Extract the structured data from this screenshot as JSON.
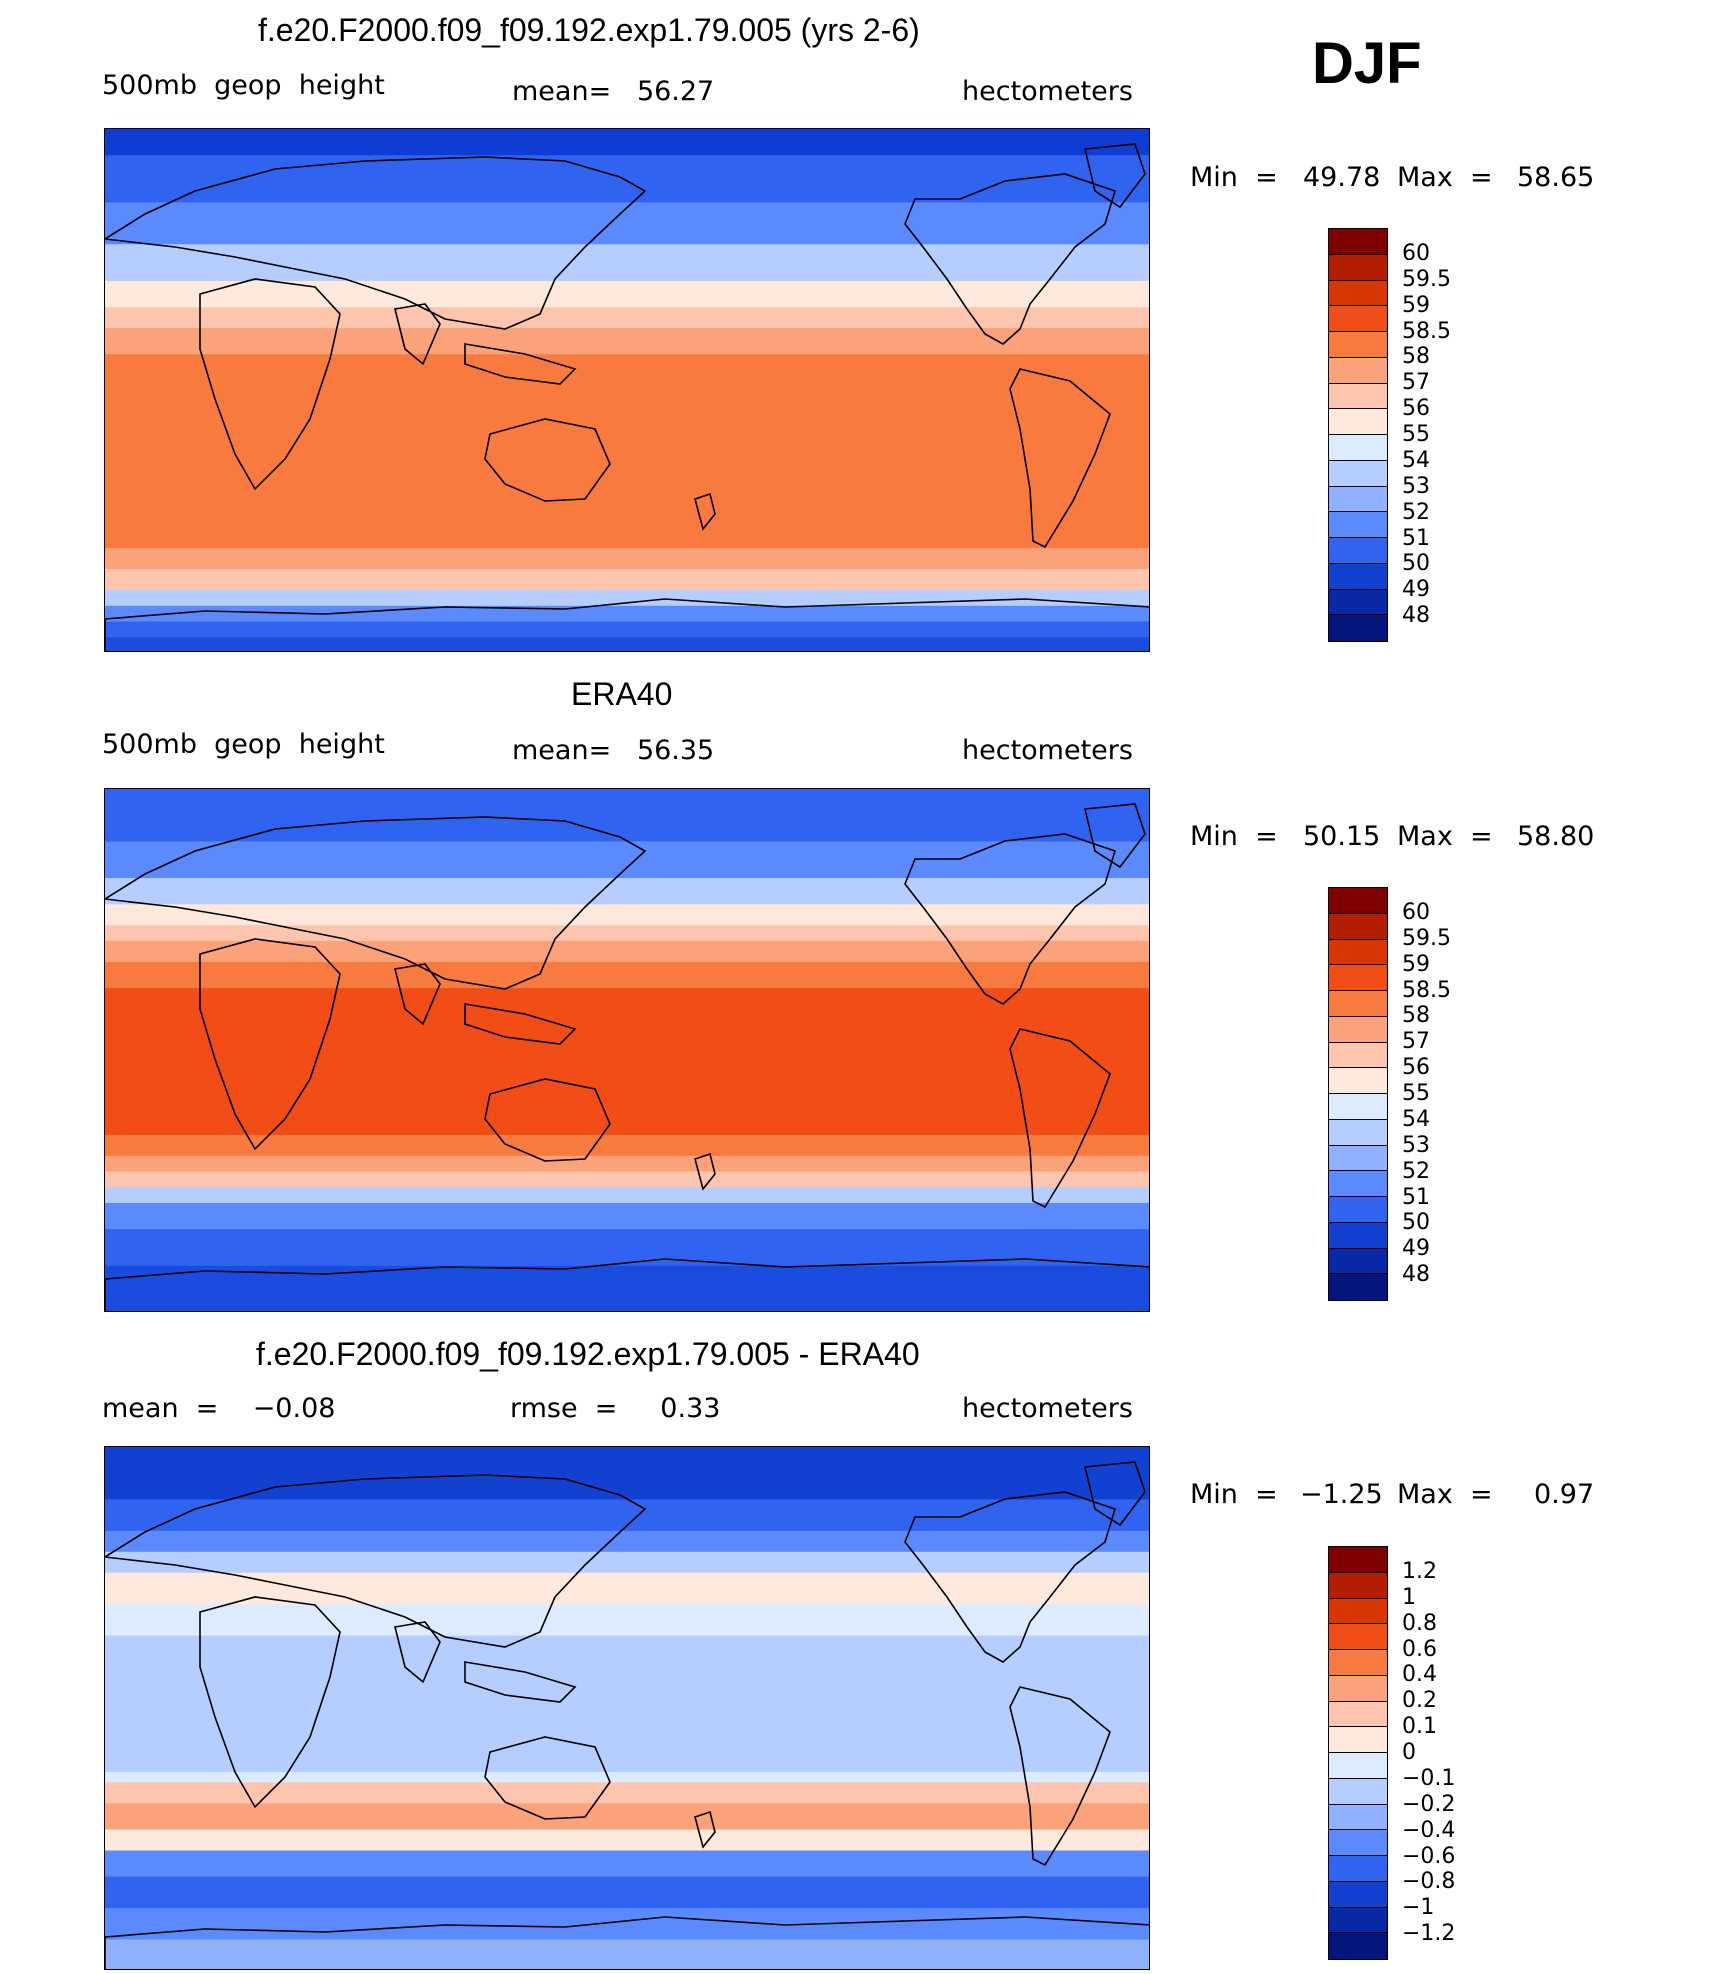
{
  "season": "DJF",
  "panels": [
    {
      "title": "f.e20.F2000.f09_f09.192.exp1.79.005 (yrs 2-6)",
      "left_label": "500mb  geop  height",
      "mid_label": "mean=   56.27",
      "right_label": "hectometers",
      "min_label": "Min  =",
      "min_value": "49.78",
      "max_label": "Max  =",
      "max_value": "58.65",
      "colorbar": {
        "labels": [
          "60",
          "59.5",
          "59",
          "58.5",
          "58",
          "57",
          "56",
          "55",
          "54",
          "53",
          "52",
          "51",
          "50",
          "49",
          "48"
        ],
        "colors": [
          "#7f0000",
          "#b31d00",
          "#d93500",
          "#f24d17",
          "#f97a3f",
          "#fba27b",
          "#fdc5ad",
          "#fee9dc",
          "#dcebff",
          "#b5cdff",
          "#8fb1ff",
          "#5a8afd",
          "#2f63f0",
          "#1240d1",
          "#0928a8",
          "#04157d"
        ]
      },
      "bands": [
        {
          "color": "#0f3dd4",
          "v": 5
        },
        {
          "color": "#2f63f0",
          "v": 14
        },
        {
          "color": "#5a8afd",
          "v": 22
        },
        {
          "color": "#b5cdff",
          "v": 29
        },
        {
          "color": "#fee9dc",
          "v": 34
        },
        {
          "color": "#fdc5ad",
          "v": 38
        },
        {
          "color": "#fba27b",
          "v": 43
        },
        {
          "color": "#f97a3f",
          "v": 80
        },
        {
          "color": "#fba27b",
          "v": 84
        },
        {
          "color": "#fdc5ad",
          "v": 88
        },
        {
          "color": "#b5cdff",
          "v": 91
        },
        {
          "color": "#5a8afd",
          "v": 94
        },
        {
          "color": "#2f63f0",
          "v": 97
        },
        {
          "color": "#1b4ce0",
          "v": 100
        }
      ]
    },
    {
      "title": "ERA40",
      "left_label": "500mb  geop  height",
      "mid_label": "mean=   56.35",
      "right_label": "hectometers",
      "min_label": "Min  =",
      "min_value": "50.15",
      "max_label": "Max  =",
      "max_value": "58.80",
      "colorbar": {
        "labels": [
          "60",
          "59.5",
          "59",
          "58.5",
          "58",
          "57",
          "56",
          "55",
          "54",
          "53",
          "52",
          "51",
          "50",
          "49",
          "48"
        ],
        "colors": [
          "#7f0000",
          "#b31d00",
          "#d93500",
          "#f24d17",
          "#f97a3f",
          "#fba27b",
          "#fdc5ad",
          "#fee9dc",
          "#dcebff",
          "#b5cdff",
          "#8fb1ff",
          "#5a8afd",
          "#2f63f0",
          "#1240d1",
          "#0928a8",
          "#04157d"
        ]
      },
      "bands": [
        {
          "color": "#2f63f0",
          "v": 10
        },
        {
          "color": "#5a8afd",
          "v": 17
        },
        {
          "color": "#b5cdff",
          "v": 22
        },
        {
          "color": "#fee9dc",
          "v": 26
        },
        {
          "color": "#fdc5ad",
          "v": 29
        },
        {
          "color": "#fba27b",
          "v": 33
        },
        {
          "color": "#f97a3f",
          "v": 38
        },
        {
          "color": "#f24d17",
          "v": 66
        },
        {
          "color": "#f97a3f",
          "v": 70
        },
        {
          "color": "#fba27b",
          "v": 73
        },
        {
          "color": "#fdc5ad",
          "v": 76
        },
        {
          "color": "#b5cdff",
          "v": 79
        },
        {
          "color": "#5a8afd",
          "v": 84
        },
        {
          "color": "#2f63f0",
          "v": 91
        },
        {
          "color": "#1b4ce0",
          "v": 100
        }
      ]
    },
    {
      "title": "f.e20.F2000.f09_f09.192.exp1.79.005 - ERA40",
      "left_label": "mean  =    −0.08",
      "mid_label": "rmse  =     0.33",
      "right_label": "hectometers",
      "min_label": "Min  =",
      "min_value": "−1.25",
      "max_label": "Max  =",
      "max_value": "0.97",
      "colorbar": {
        "labels": [
          "1.2",
          "1",
          "0.8",
          "0.6",
          "0.4",
          "0.2",
          "0.1",
          "0",
          "−0.1",
          "−0.2",
          "−0.4",
          "−0.6",
          "−0.8",
          "−1",
          "−1.2"
        ],
        "colors": [
          "#7f0000",
          "#b31d00",
          "#d93500",
          "#f24d17",
          "#f97a3f",
          "#fba27b",
          "#fdc5ad",
          "#fee9dc",
          "#dcebff",
          "#b5cdff",
          "#8fb1ff",
          "#5a8afd",
          "#2f63f0",
          "#1240d1",
          "#0928a8",
          "#04157d"
        ]
      },
      "bands": [
        {
          "color": "#1240d1",
          "v": 10
        },
        {
          "color": "#2f63f0",
          "v": 16
        },
        {
          "color": "#5a8afd",
          "v": 20
        },
        {
          "color": "#b5cdff",
          "v": 24
        },
        {
          "color": "#fee9dc",
          "v": 30
        },
        {
          "color": "#dcebff",
          "v": 36
        },
        {
          "color": "#b5cdff",
          "v": 62
        },
        {
          "color": "#dcebff",
          "v": 64
        },
        {
          "color": "#fdc5ad",
          "v": 68
        },
        {
          "color": "#fba27b",
          "v": 73
        },
        {
          "color": "#fee9dc",
          "v": 77
        },
        {
          "color": "#5a8afd",
          "v": 82
        },
        {
          "color": "#2f63f0",
          "v": 88
        },
        {
          "color": "#5a8afd",
          "v": 94
        },
        {
          "color": "#8fb1ff",
          "v": 100
        }
      ]
    }
  ]
}
